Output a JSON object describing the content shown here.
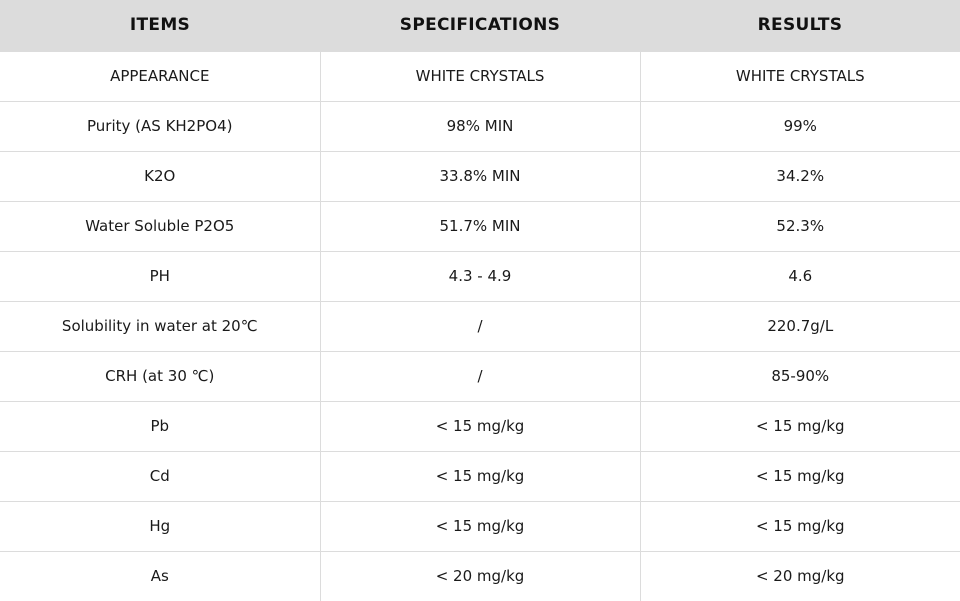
{
  "headers": {
    "items": "ITEMS",
    "specifications": "SPECIFICATIONS",
    "results": "RESULTS"
  },
  "rows": [
    {
      "item": "APPEARANCE",
      "spec": "WHITE CRYSTALS",
      "result": "WHITE CRYSTALS"
    },
    {
      "item": "Purity (AS KH2PO4)",
      "spec": "98% MIN",
      "result": "99%"
    },
    {
      "item": "K2O",
      "spec": "33.8% MIN",
      "result": "34.2%"
    },
    {
      "item": "Water Soluble P2O5",
      "spec": "51.7% MIN",
      "result": "52.3%"
    },
    {
      "item": "PH",
      "spec": "4.3 - 4.9",
      "result": "4.6"
    },
    {
      "item": "Solubility in water at 20℃",
      "spec": "/",
      "result": "220.7g/L"
    },
    {
      "item": "CRH (at 30 ℃)",
      "spec": "/",
      "result": "85-90%"
    },
    {
      "item": "Pb",
      "spec": "< 15 mg/kg",
      "result": "< 15 mg/kg"
    },
    {
      "item": "Cd",
      "spec": "< 15 mg/kg",
      "result": "< 15 mg/kg"
    },
    {
      "item": "Hg",
      "spec": "< 15 mg/kg",
      "result": "< 15 mg/kg"
    },
    {
      "item": "As",
      "spec": "< 20 mg/kg",
      "result": "< 20 mg/kg"
    }
  ]
}
